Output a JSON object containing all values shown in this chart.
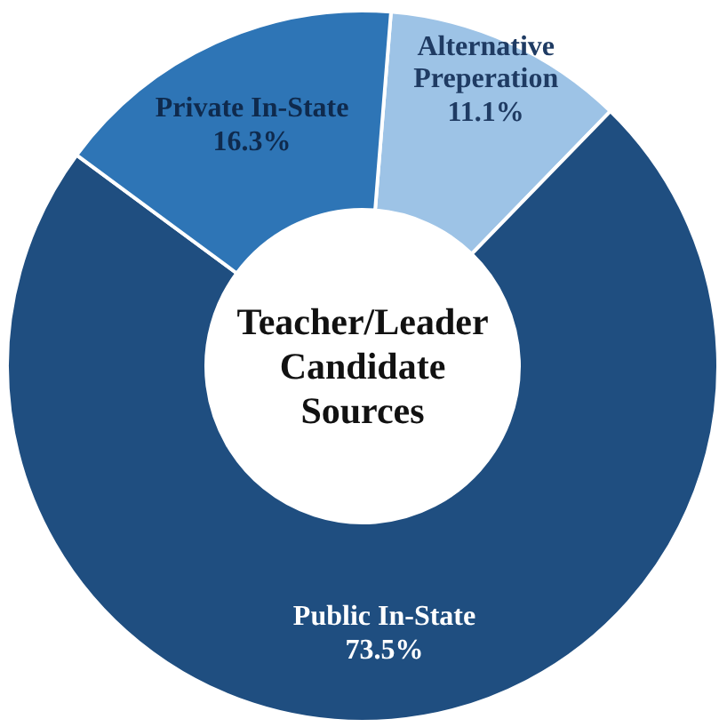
{
  "chart_data": {
    "type": "donut",
    "title": "Teacher/Leader Candidate Sources",
    "categories": [
      "Alternative Preperation",
      "Public In-State",
      "Private In-State"
    ],
    "values": [
      11.1,
      73.5,
      16.3
    ],
    "value_labels": [
      "11.1%",
      "73.5%",
      "16.3%"
    ],
    "colors": [
      "#9dc3e6",
      "#1f4e80",
      "#2e75b6"
    ]
  }
}
